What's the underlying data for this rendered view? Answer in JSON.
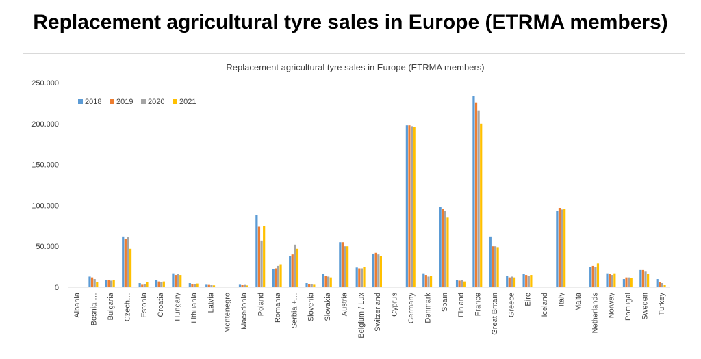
{
  "page_title": "Replacement agricultural tyre sales in Europe (ETRMA members)",
  "chart_data": {
    "type": "bar",
    "title": "Replacement agricultural tyre sales in Europe (ETRMA members)",
    "xlabel": "",
    "ylabel": "",
    "ylim": [
      0,
      250000
    ],
    "yticks": [
      0,
      50000,
      100000,
      150000,
      200000,
      250000
    ],
    "ytick_labels": [
      "0",
      "50.000",
      "100.000",
      "150.000",
      "200.000",
      "250.000"
    ],
    "grid": false,
    "legend_position": "top-left",
    "categories": [
      "Albania",
      "Bosnia-…",
      "Bulgaria",
      "Czech…",
      "Estonia",
      "Croatia",
      "Hungary",
      "Lithuania",
      "Latvia",
      "Montenegro",
      "Macedonia",
      "Poland",
      "Romania",
      "Serbia +…",
      "Slovenia",
      "Slovakia",
      "Austria",
      "Belgium / Lux",
      "Switzerland",
      "Cyprus",
      "Germany",
      "Denmark",
      "Spain",
      "Finland",
      "France",
      "Great Britain",
      "Greece",
      "Eire",
      "Iceland",
      "Italy",
      "Malta",
      "Netherlands",
      "Norway",
      "Portugal",
      "Sweden",
      "Turkey"
    ],
    "series": [
      {
        "name": "2018",
        "color": "#5b9bd5",
        "values": [
          0,
          13000,
          9000,
          62000,
          5000,
          9000,
          17000,
          5000,
          3000,
          500,
          3000,
          88000,
          22000,
          38000,
          5000,
          16000,
          55000,
          24000,
          41000,
          0,
          198000,
          17000,
          98000,
          9000,
          234000,
          62000,
          14000,
          16000,
          0,
          93000,
          0,
          25000,
          17000,
          10000,
          21000,
          10000
        ]
      },
      {
        "name": "2019",
        "color": "#ed7d31",
        "values": [
          0,
          12000,
          8500,
          59000,
          3000,
          7000,
          15000,
          3500,
          2800,
          500,
          2500,
          74000,
          23000,
          40000,
          4000,
          14000,
          55000,
          23000,
          42000,
          0,
          198000,
          15000,
          96000,
          8000,
          226000,
          50000,
          12000,
          15000,
          0,
          97000,
          0,
          26000,
          16000,
          12000,
          21000,
          6000
        ]
      },
      {
        "name": "2020",
        "color": "#a5a5a5",
        "values": [
          0,
          10000,
          8000,
          61000,
          4000,
          6000,
          16000,
          4000,
          2500,
          400,
          2800,
          57000,
          26000,
          52000,
          4000,
          13000,
          50000,
          23000,
          40000,
          0,
          197000,
          13000,
          93000,
          9000,
          216000,
          50000,
          13000,
          14000,
          0,
          95000,
          0,
          25000,
          15000,
          12000,
          19000,
          5000
        ]
      },
      {
        "name": "2021",
        "color": "#ffc000",
        "values": [
          0,
          6000,
          8500,
          47000,
          6000,
          7000,
          15000,
          4500,
          2300,
          500,
          2200,
          75000,
          28000,
          47000,
          3000,
          12000,
          50000,
          25000,
          38000,
          0,
          196000,
          14000,
          85000,
          7000,
          200000,
          49000,
          12000,
          15000,
          0,
          96000,
          0,
          29000,
          17000,
          11000,
          16000,
          2500
        ]
      }
    ]
  }
}
